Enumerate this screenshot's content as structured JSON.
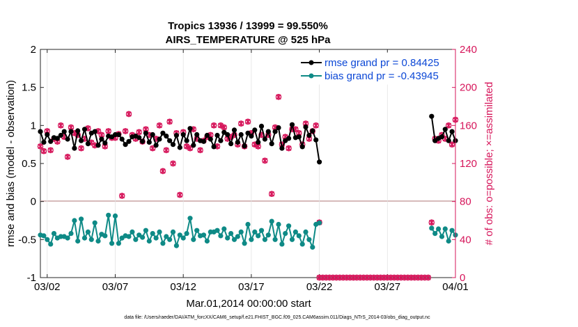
{
  "chart_data": {
    "type": "line",
    "title": "Tropics 13936 / 13999 = 99.550%",
    "subtitle": "AIRS_TEMPERATURE @ 525 hPa",
    "xlabel": "Mar.01,2014 00:00:00 start",
    "ylabel": "rmse and bias (model - observation)",
    "ylabel_right": "# of obs: o=possible; ×=assimilated",
    "footer": "data file: /Users/raeder/DAI/ATM_forcXX/CAM6_setup/f.e21.FHIST_BGC.f09_025.CAM6assim.011/Diags_NTrS_2014-03/obs_diag_output.nc",
    "xlim": [
      1.5,
      32.0
    ],
    "ylim": [
      -1,
      2
    ],
    "ylim_right": [
      0,
      240
    ],
    "x_tick_values": [
      2,
      7,
      12,
      17,
      22,
      27,
      32
    ],
    "x_tick_labels": [
      "03/02",
      "03/07",
      "03/12",
      "03/17",
      "03/22",
      "03/27",
      "04/01"
    ],
    "y_ticks": [
      -1,
      -0.5,
      0,
      0.5,
      1,
      1.5,
      2
    ],
    "y_tick_labels": [
      "-1",
      "-0.5",
      "0",
      "0.5",
      "1",
      "1.5",
      "2"
    ],
    "y_right_ticks": [
      0,
      40,
      80,
      120,
      160,
      200,
      240
    ],
    "y_right_tick_labels": [
      "0",
      "40",
      "80",
      "120",
      "160",
      "200",
      "240"
    ],
    "legend": [
      {
        "label": "rmse grand pr = 0.84425",
        "color": "#000000"
      },
      {
        "label": "bias grand pr = -0.43945",
        "color": "#0e8a86"
      }
    ],
    "colors": {
      "rmse": "#000000",
      "bias": "#0e8a86",
      "obs": "#d6155a",
      "zero_line": "#c8a3a3",
      "axis": "#262626"
    },
    "series": [
      {
        "name": "rmse",
        "axis": "left",
        "segments": [
          {
            "x": [
              1.5,
              1.75,
              2,
              2.25,
              2.5,
              2.75,
              3,
              3.25,
              3.5,
              3.75,
              4,
              4.25,
              4.5,
              4.75,
              5,
              5.25,
              5.5,
              5.75,
              6,
              6.25,
              6.5,
              6.75,
              7,
              7.25,
              7.5,
              7.75,
              8,
              8.25,
              8.5,
              8.75,
              9,
              9.25,
              9.5,
              9.75,
              10,
              10.25,
              10.5,
              10.75,
              11,
              11.25,
              11.5,
              11.75,
              12,
              12.25,
              12.5,
              12.75,
              13,
              13.25,
              13.5,
              13.75,
              14,
              14.25,
              14.5,
              14.75,
              15,
              15.25,
              15.5,
              15.75,
              16,
              16.25,
              16.5,
              16.75,
              17,
              17.25,
              17.5,
              17.75,
              18,
              18.25,
              18.5,
              18.75,
              19,
              19.25,
              19.5,
              19.75,
              20,
              20.25,
              20.5,
              20.75,
              21,
              21.25,
              21.5,
              21.75,
              22
            ],
            "y": [
              0.92,
              0.78,
              0.88,
              0.79,
              0.84,
              0.83,
              0.87,
              0.92,
              0.82,
              0.92,
              0.7,
              0.93,
              0.8,
              0.95,
              0.76,
              0.9,
              0.92,
              0.74,
              0.82,
              0.77,
              0.86,
              0.85,
              0.88,
              0.88,
              0.82,
              0.75,
              0.79,
              0.85,
              0.86,
              0.84,
              0.79,
              0.9,
              0.78,
              0.88,
              0.74,
              0.82,
              0.9,
              0.86,
              0.8,
              0.75,
              0.87,
              0.71,
              0.88,
              0.8,
              0.96,
              0.74,
              0.88,
              0.8,
              0.79,
              0.87,
              0.82,
              0.72,
              0.87,
              0.8,
              0.91,
              0.88,
              0.76,
              0.94,
              0.78,
              0.88,
              0.73,
              0.9,
              0.86,
              0.94,
              0.78,
              0.99,
              0.82,
              0.92,
              0.76,
              0.92,
              0.97,
              0.7,
              0.8,
              0.83,
              1.01,
              0.84,
              0.85,
              0.72,
              0.98,
              0.87,
              0.93,
              0.81,
              0.52
            ]
          },
          {
            "x": [
              30.25,
              30.5,
              30.75,
              31,
              31.25,
              31.5,
              31.75,
              32
            ],
            "y": [
              1.12,
              0.8,
              0.83,
              0.85,
              0.95,
              0.8,
              0.92,
              0.8
            ]
          }
        ]
      },
      {
        "name": "bias",
        "axis": "left",
        "segments": [
          {
            "x": [
              1.5,
              1.75,
              2,
              2.25,
              2.5,
              2.75,
              3,
              3.25,
              3.5,
              3.75,
              4,
              4.25,
              4.5,
              4.75,
              5,
              5.25,
              5.5,
              5.75,
              6,
              6.25,
              6.5,
              6.75,
              7,
              7.25,
              7.5,
              7.75,
              8,
              8.25,
              8.5,
              8.75,
              9,
              9.25,
              9.5,
              9.75,
              10,
              10.25,
              10.5,
              10.75,
              11,
              11.25,
              11.5,
              11.75,
              12,
              12.25,
              12.5,
              12.75,
              13,
              13.25,
              13.5,
              13.75,
              14,
              14.25,
              14.5,
              14.75,
              15,
              15.25,
              15.5,
              15.75,
              16,
              16.25,
              16.5,
              16.75,
              17,
              17.25,
              17.5,
              17.75,
              18,
              18.25,
              18.5,
              18.75,
              19,
              19.25,
              19.5,
              19.75,
              20,
              20.25,
              20.5,
              20.75,
              21,
              21.25,
              21.5,
              21.75,
              22
            ],
            "y": [
              -0.44,
              -0.45,
              -0.5,
              -0.56,
              -0.42,
              -0.48,
              -0.46,
              -0.46,
              -0.48,
              -0.42,
              -0.25,
              -0.52,
              -0.23,
              -0.48,
              -0.4,
              -0.5,
              -0.28,
              -0.52,
              -0.43,
              -0.45,
              -0.18,
              -0.55,
              -0.19,
              -0.55,
              -0.48,
              -0.45,
              -0.46,
              -0.4,
              -0.5,
              -0.44,
              -0.47,
              -0.38,
              -0.52,
              -0.42,
              -0.48,
              -0.4,
              -0.55,
              -0.46,
              -0.5,
              -0.4,
              -0.58,
              -0.44,
              -0.48,
              -0.42,
              -0.22,
              -0.5,
              -0.38,
              -0.45,
              -0.44,
              -0.52,
              -0.4,
              -0.4,
              -0.38,
              -0.45,
              -0.36,
              -0.48,
              -0.42,
              -0.5,
              -0.46,
              -0.4,
              -0.55,
              -0.3,
              -0.5,
              -0.4,
              -0.45,
              -0.38,
              -0.5,
              -0.44,
              -0.26,
              -0.5,
              -0.3,
              -0.56,
              -0.42,
              -0.32,
              -0.5,
              -0.4,
              -0.45,
              -0.56,
              -0.4,
              -0.5,
              -0.6,
              -0.3,
              -0.28
            ]
          },
          {
            "x": [
              30.25,
              30.5,
              30.75,
              31,
              31.25,
              31.5,
              31.75,
              32
            ],
            "y": [
              -0.35,
              -0.42,
              -0.36,
              -0.46,
              -0.36,
              -0.52,
              -0.38,
              -0.44
            ]
          }
        ]
      },
      {
        "name": "obs possible (o) and assimilated (×)",
        "axis": "right",
        "segments": [
          {
            "x": [
              1.5,
              1.75,
              2,
              2.25,
              2.5,
              2.75,
              3,
              3.25,
              3.5,
              3.75,
              4,
              4.25,
              4.5,
              4.75,
              5,
              5.25,
              5.5,
              5.75,
              6,
              6.25,
              6.5,
              6.75,
              7,
              7.25,
              7.5,
              7.75,
              8,
              8.25,
              8.5,
              8.75,
              9,
              9.25,
              9.5,
              9.75,
              10,
              10.25,
              10.5,
              10.75,
              11,
              11.25,
              11.5,
              11.75,
              12,
              12.25,
              12.5,
              12.75,
              13,
              13.25,
              13.5,
              13.75,
              14,
              14.25,
              14.5,
              14.75,
              15,
              15.25,
              15.5,
              15.75,
              16,
              16.25,
              16.5,
              16.75,
              17,
              17.25,
              17.5,
              17.75,
              18,
              18.25,
              18.5,
              18.75,
              19,
              19.25,
              19.5,
              19.75,
              20,
              20.25,
              20.5,
              20.75,
              21,
              21.25,
              21.5,
              21.75,
              22
            ],
            "y": [
              138,
              133,
              154,
              134,
              146,
              143,
              160,
              148,
              127,
              158,
              152,
              150,
              136,
              146,
              157,
              142,
              139,
              154,
              150,
              138,
              154,
              147,
              147,
              151,
              86,
              154,
              172,
              150,
              146,
              153,
              143,
              156,
              150,
              136,
              146,
              160,
              112,
              134,
              164,
              120,
              152,
              87,
              153,
              138,
              136,
              156,
              146,
              134,
              144,
              148,
              150,
              160,
              138,
              160,
              158,
              146,
              148,
              150,
              140,
              162,
              138,
              164,
              152,
              140,
              138,
              150,
              123,
              150,
              88,
              158,
              190,
              140,
              148,
              136,
              156,
              156,
              152,
              140,
              162,
              146,
              154,
              160,
              58
            ]
          },
          {
            "x": [
              30.25,
              30.5,
              30.75,
              31,
              31.25,
              31.5,
              31.75,
              32
            ],
            "y": [
              58,
              146,
              144,
              150,
              146,
              160,
              140,
              166
            ]
          }
        ]
      },
      {
        "name": "obs zero",
        "axis": "right",
        "segments": [
          {
            "x": [
              22,
              22.25,
              22.5,
              22.75,
              23,
              23.25,
              23.5,
              23.75,
              24,
              24.25,
              24.5,
              24.75,
              25,
              25.25,
              25.5,
              25.75,
              26,
              26.25,
              26.5,
              26.75,
              27,
              27.25,
              27.5,
              27.75,
              28,
              28.25,
              28.5,
              28.75,
              29,
              29.25,
              29.5,
              29.75,
              30
            ],
            "y": [
              0,
              0,
              0,
              0,
              0,
              0,
              0,
              0,
              0,
              0,
              0,
              0,
              0,
              0,
              0,
              0,
              0,
              0,
              0,
              0,
              0,
              0,
              0,
              0,
              0,
              0,
              0,
              0,
              0,
              0,
              0,
              0,
              0
            ]
          }
        ]
      }
    ]
  }
}
